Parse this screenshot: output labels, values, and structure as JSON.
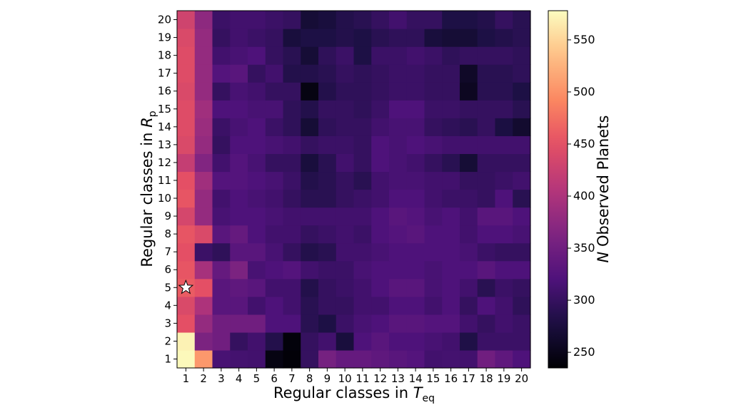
{
  "chart_data": {
    "type": "heatmap",
    "title": "",
    "x_categories": [
      "1",
      "2",
      "3",
      "4",
      "5",
      "6",
      "7",
      "8",
      "9",
      "10",
      "11",
      "12",
      "13",
      "14",
      "15",
      "16",
      "17",
      "18",
      "19",
      "20"
    ],
    "y_categories": [
      "1",
      "2",
      "3",
      "4",
      "5",
      "6",
      "7",
      "8",
      "9",
      "10",
      "11",
      "12",
      "13",
      "14",
      "15",
      "16",
      "17",
      "18",
      "19",
      "20"
    ],
    "xlabel": {
      "main": "Regular classes in ",
      "symbol": "T",
      "subscript": "eq"
    },
    "ylabel": {
      "main": "Regular classes in ",
      "symbol": "R",
      "subscript": "p"
    },
    "colorbar": {
      "label_italic": "N",
      "label_rest": " Observed Planets",
      "range": [
        235,
        578
      ],
      "ticks": [
        "250",
        "300",
        "350",
        "400",
        "450",
        "500",
        "550"
      ],
      "tick_values": [
        250,
        300,
        350,
        400,
        450,
        500,
        550
      ],
      "colormap": "magma"
    },
    "marker": {
      "shape": "star",
      "x": "1",
      "y": "5"
    },
    "grid": false,
    "values": [
      [
        575,
        505,
        315,
        312,
        310,
        245,
        238,
        300,
        355,
        340,
        340,
        335,
        330,
        325,
        310,
        312,
        310,
        350,
        335,
        320
      ],
      [
        570,
        360,
        350,
        300,
        310,
        285,
        240,
        300,
        310,
        275,
        320,
        330,
        320,
        320,
        315,
        310,
        282,
        305,
        305,
        305
      ],
      [
        450,
        380,
        350,
        350,
        350,
        320,
        320,
        290,
        280,
        305,
        315,
        320,
        330,
        330,
        325,
        325,
        310,
        300,
        310,
        305
      ],
      [
        440,
        400,
        330,
        330,
        310,
        320,
        310,
        290,
        300,
        300,
        310,
        310,
        320,
        320,
        310,
        320,
        300,
        320,
        310,
        295
      ],
      [
        460,
        450,
        330,
        335,
        330,
        310,
        310,
        285,
        300,
        305,
        310,
        320,
        330,
        330,
        315,
        320,
        310,
        290,
        305,
        300
      ],
      [
        455,
        395,
        340,
        360,
        315,
        320,
        325,
        310,
        305,
        305,
        315,
        320,
        320,
        320,
        315,
        320,
        320,
        330,
        320,
        320
      ],
      [
        450,
        305,
        295,
        330,
        330,
        315,
        300,
        285,
        290,
        310,
        310,
        315,
        320,
        320,
        320,
        320,
        315,
        305,
        300,
        300
      ],
      [
        455,
        440,
        330,
        340,
        320,
        310,
        310,
        300,
        305,
        310,
        305,
        320,
        325,
        330,
        320,
        320,
        310,
        320,
        320,
        315
      ],
      [
        435,
        380,
        315,
        320,
        320,
        315,
        310,
        310,
        310,
        310,
        310,
        320,
        330,
        325,
        315,
        320,
        310,
        330,
        330,
        320
      ],
      [
        455,
        380,
        310,
        320,
        315,
        310,
        300,
        290,
        290,
        300,
        305,
        310,
        320,
        320,
        310,
        305,
        305,
        300,
        320,
        290
      ],
      [
        450,
        390,
        325,
        325,
        320,
        315,
        305,
        285,
        290,
        300,
        290,
        310,
        315,
        315,
        310,
        310,
        300,
        300,
        305,
        310
      ],
      [
        420,
        365,
        310,
        325,
        315,
        300,
        300,
        275,
        290,
        310,
        300,
        320,
        315,
        310,
        300,
        290,
        270,
        300,
        300,
        300
      ],
      [
        440,
        380,
        300,
        320,
        320,
        315,
        310,
        300,
        305,
        305,
        300,
        320,
        315,
        320,
        315,
        310,
        310,
        310,
        310,
        310
      ],
      [
        445,
        385,
        305,
        315,
        320,
        305,
        295,
        270,
        295,
        300,
        300,
        310,
        315,
        315,
        300,
        295,
        290,
        300,
        278,
        265
      ],
      [
        445,
        390,
        320,
        320,
        315,
        315,
        295,
        285,
        300,
        300,
        295,
        305,
        320,
        320,
        305,
        305,
        300,
        300,
        300,
        290
      ],
      [
        440,
        380,
        300,
        315,
        310,
        300,
        300,
        245,
        285,
        295,
        295,
        300,
        305,
        305,
        300,
        300,
        255,
        290,
        290,
        280
      ],
      [
        445,
        380,
        325,
        330,
        300,
        310,
        285,
        285,
        290,
        300,
        295,
        300,
        305,
        305,
        300,
        300,
        260,
        290,
        290,
        295
      ],
      [
        445,
        380,
        310,
        315,
        320,
        300,
        290,
        270,
        295,
        305,
        280,
        305,
        305,
        310,
        305,
        295,
        300,
        300,
        300,
        295
      ],
      [
        440,
        380,
        300,
        310,
        305,
        300,
        275,
        280,
        280,
        285,
        280,
        290,
        295,
        295,
        275,
        270,
        270,
        280,
        285,
        290
      ],
      [
        430,
        375,
        305,
        310,
        310,
        305,
        300,
        270,
        275,
        285,
        290,
        300,
        310,
        300,
        300,
        280,
        280,
        285,
        300,
        290
      ]
    ]
  }
}
